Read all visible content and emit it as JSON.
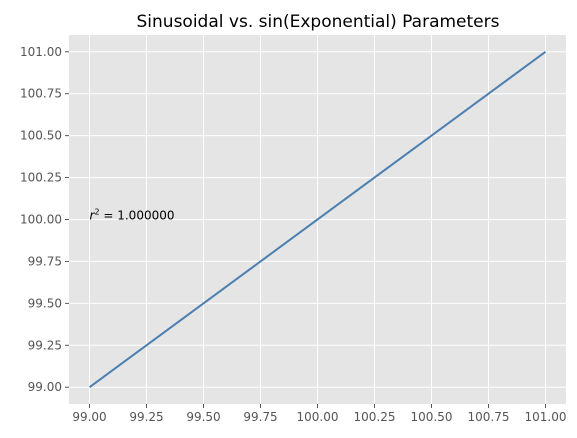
{
  "chart_data": {
    "type": "line",
    "title": "Sinusoidal vs. sin(Exponential) Parameters",
    "xlabel": "",
    "ylabel": "",
    "xlim": [
      98.91,
      101.09
    ],
    "ylim": [
      98.9,
      101.1
    ],
    "grid": true,
    "x_ticks": [
      99.0,
      99.25,
      99.5,
      99.75,
      100.0,
      100.25,
      100.5,
      100.75,
      101.0
    ],
    "y_ticks": [
      99.0,
      99.25,
      99.5,
      99.75,
      100.0,
      100.25,
      100.5,
      100.75,
      101.0
    ],
    "x_tick_labels": [
      "99.00",
      "99.25",
      "99.50",
      "99.75",
      "100.00",
      "100.25",
      "100.50",
      "100.75",
      "101.00"
    ],
    "y_tick_labels": [
      "99.00",
      "99.25",
      "99.50",
      "99.75",
      "100.00",
      "100.25",
      "100.50",
      "100.75",
      "101.00"
    ],
    "series": [
      {
        "color": "#4a7fb0",
        "x": [
          99.0,
          101.0
        ],
        "y": [
          99.0,
          101.0
        ]
      }
    ],
    "annotation": {
      "r_symbol": "r",
      "exponent": "2",
      "value_text": " = 1.000000",
      "x": 99.0,
      "y": 100.0
    },
    "colors": {
      "plot_background": "#e5e5e5",
      "grid": "#ffffff"
    }
  }
}
